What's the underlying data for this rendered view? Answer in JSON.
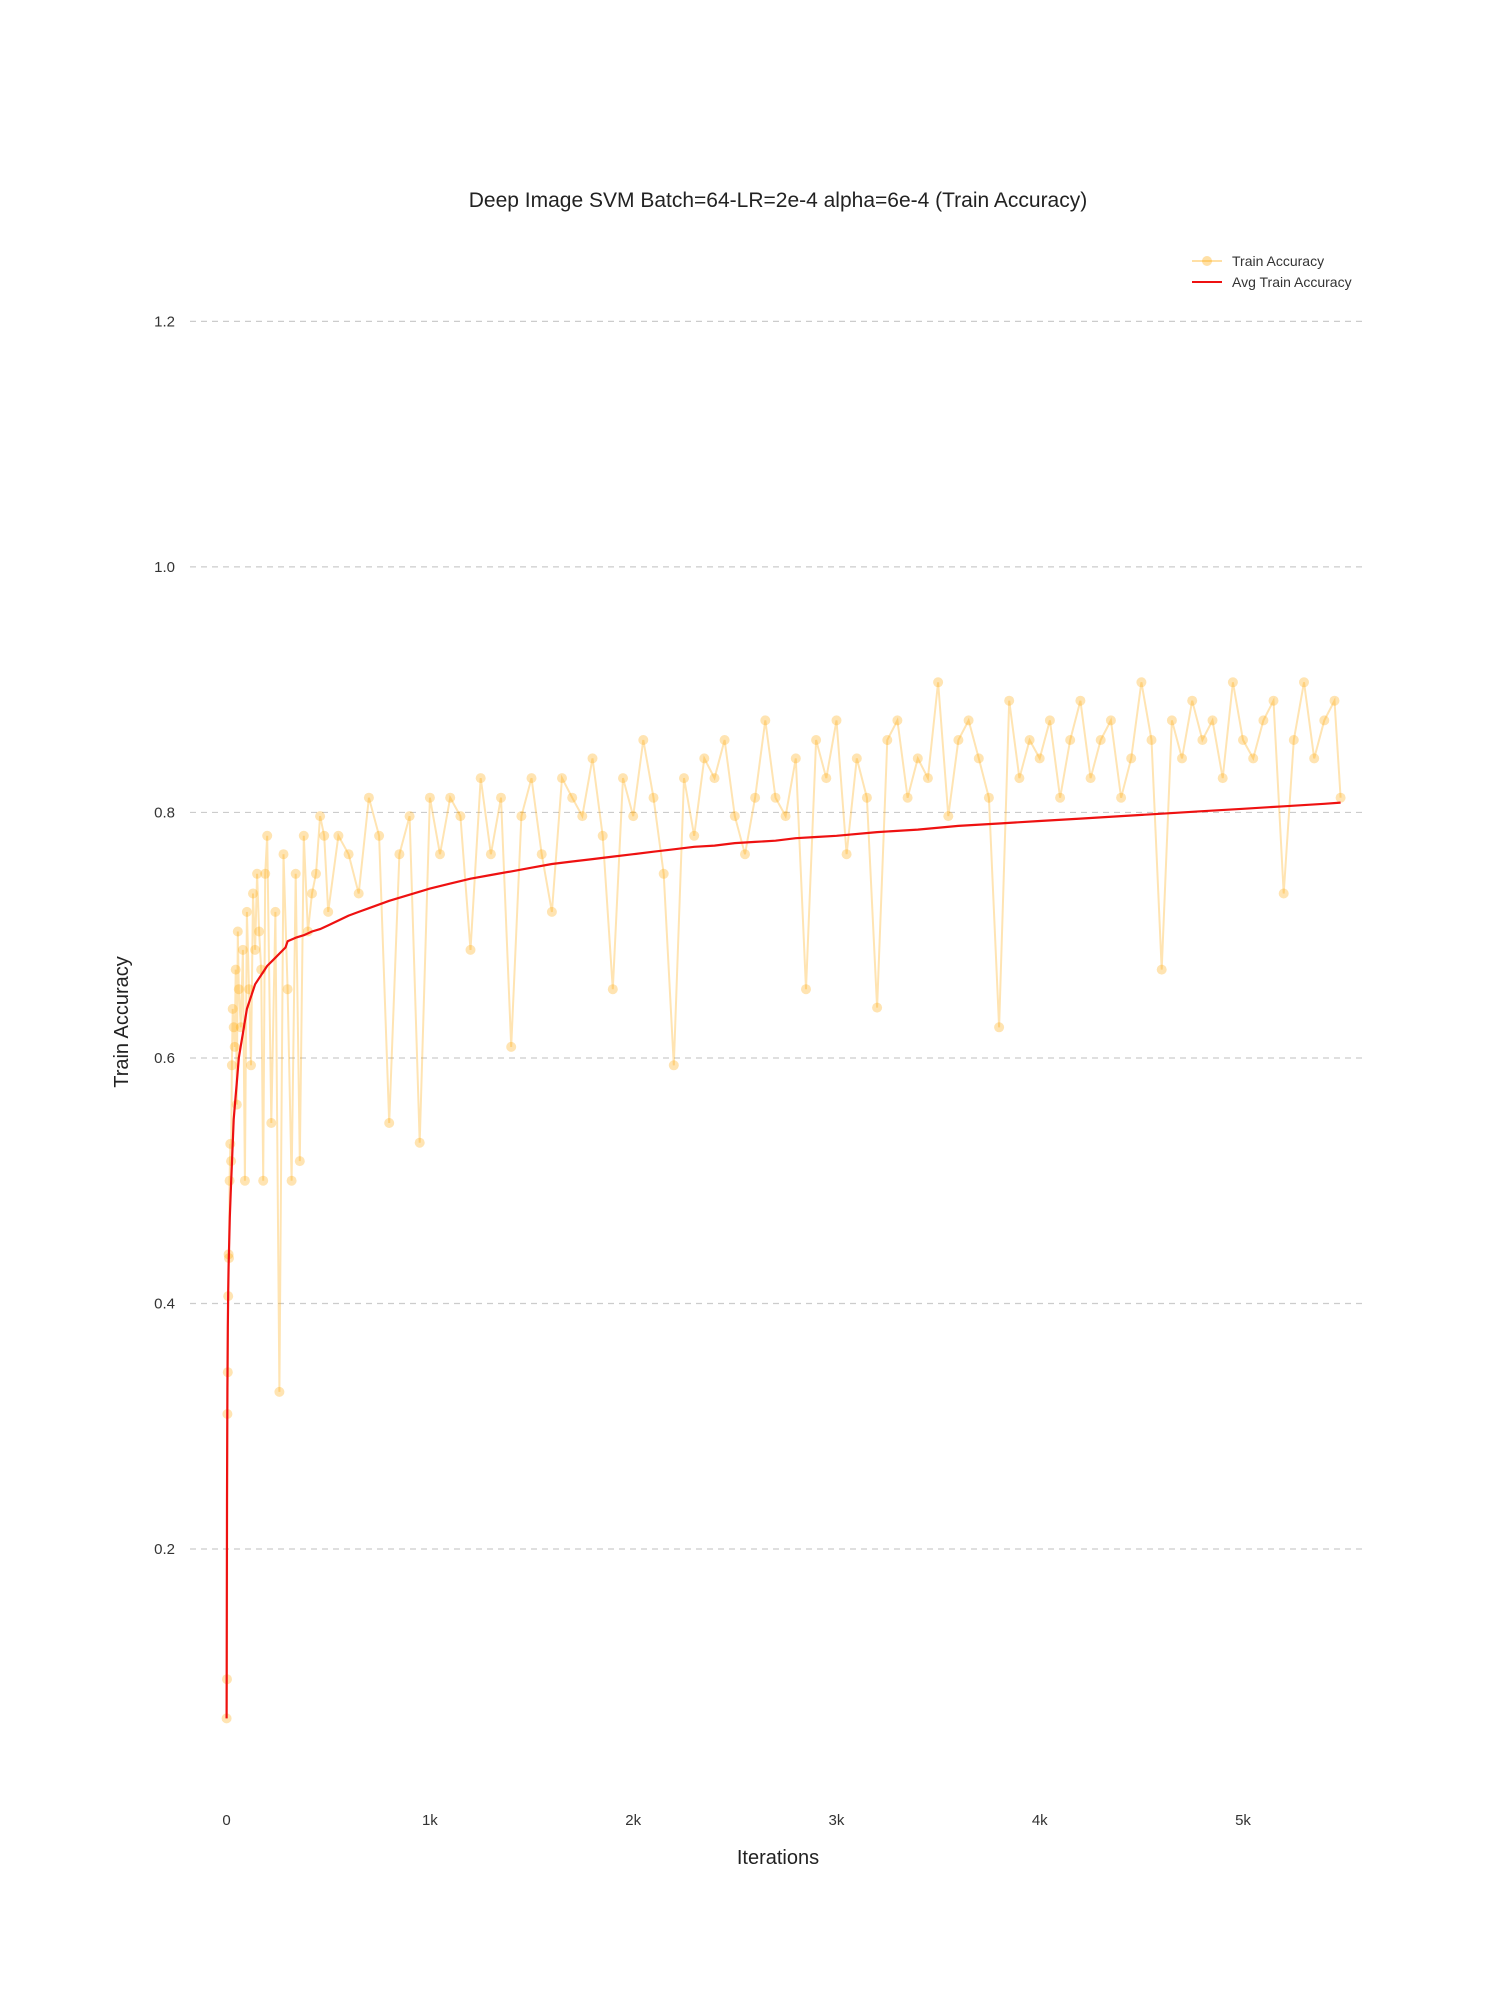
{
  "chart_data": {
    "type": "line",
    "title": "Deep Image SVM Batch=64-LR=2e-4 alpha=6e-4 (Train Accuracy)",
    "xlabel": "Iterations",
    "ylabel": "Train Accuracy",
    "xlim": [
      -180,
      5600
    ],
    "ylim": [
      0.02,
      1.25
    ],
    "x_ticks": [
      0,
      1000,
      2000,
      3000,
      4000,
      5000
    ],
    "x_tick_labels": [
      "0",
      "1k",
      "2k",
      "3k",
      "4k",
      "5k"
    ],
    "y_ticks": [
      0.2,
      0.4,
      0.6,
      0.8,
      1.0,
      1.2
    ],
    "y_tick_labels": [
      "0.2",
      "0.4",
      "0.6",
      "0.8",
      "1.0",
      "1.2"
    ],
    "grid": "horizontal-dashed",
    "legend_position": "top-right",
    "colors": {
      "raw": "#ffa500",
      "avg": "#ee1111",
      "grid": "#cccccc"
    },
    "series": [
      {
        "name": "Train Accuracy",
        "style": "line+markers",
        "x": [
          0,
          2,
          4,
          6,
          8,
          10,
          12,
          15,
          18,
          22,
          26,
          30,
          35,
          40,
          45,
          50,
          55,
          60,
          70,
          80,
          90,
          100,
          110,
          120,
          130,
          140,
          150,
          160,
          170,
          180,
          190,
          200,
          220,
          240,
          260,
          280,
          300,
          320,
          340,
          360,
          380,
          400,
          420,
          440,
          460,
          480,
          500,
          550,
          600,
          650,
          700,
          750,
          800,
          850,
          900,
          950,
          1000,
          1050,
          1100,
          1150,
          1200,
          1250,
          1300,
          1350,
          1400,
          1450,
          1500,
          1550,
          1600,
          1650,
          1700,
          1750,
          1800,
          1850,
          1900,
          1950,
          2000,
          2050,
          2100,
          2150,
          2200,
          2250,
          2300,
          2350,
          2400,
          2450,
          2500,
          2550,
          2600,
          2650,
          2700,
          2750,
          2800,
          2850,
          2900,
          2950,
          3000,
          3050,
          3100,
          3150,
          3200,
          3250,
          3300,
          3350,
          3400,
          3450,
          3500,
          3550,
          3600,
          3650,
          3700,
          3750,
          3800,
          3850,
          3900,
          3950,
          4000,
          4050,
          4100,
          4150,
          4200,
          4250,
          4300,
          4350,
          4400,
          4450,
          4500,
          4550,
          4600,
          4650,
          4700,
          4750,
          4800,
          4850,
          4900,
          4950,
          5000,
          5050,
          5100,
          5150,
          5200,
          5250,
          5300,
          5350,
          5400,
          5450,
          5480
        ],
        "y": [
          0.062,
          0.094,
          0.31,
          0.344,
          0.406,
          0.44,
          0.437,
          0.5,
          0.53,
          0.516,
          0.594,
          0.64,
          0.625,
          0.609,
          0.672,
          0.562,
          0.703,
          0.656,
          0.625,
          0.688,
          0.5,
          0.719,
          0.656,
          0.594,
          0.734,
          0.688,
          0.75,
          0.703,
          0.672,
          0.5,
          0.75,
          0.781,
          0.547,
          0.719,
          0.328,
          0.766,
          0.656,
          0.5,
          0.75,
          0.516,
          0.781,
          0.703,
          0.734,
          0.75,
          0.797,
          0.781,
          0.719,
          0.781,
          0.766,
          0.734,
          0.812,
          0.781,
          0.547,
          0.766,
          0.797,
          0.531,
          0.812,
          0.766,
          0.812,
          0.797,
          0.688,
          0.828,
          0.766,
          0.812,
          0.609,
          0.797,
          0.828,
          0.766,
          0.719,
          0.828,
          0.812,
          0.797,
          0.844,
          0.781,
          0.656,
          0.828,
          0.797,
          0.859,
          0.812,
          0.75,
          0.594,
          0.828,
          0.781,
          0.844,
          0.828,
          0.859,
          0.797,
          0.766,
          0.812,
          0.875,
          0.812,
          0.797,
          0.844,
          0.656,
          0.859,
          0.828,
          0.875,
          0.766,
          0.844,
          0.812,
          0.641,
          0.859,
          0.875,
          0.812,
          0.844,
          0.828,
          0.906,
          0.797,
          0.859,
          0.875,
          0.844,
          0.812,
          0.625,
          0.891,
          0.828,
          0.859,
          0.844,
          0.875,
          0.812,
          0.859,
          0.891,
          0.828,
          0.859,
          0.875,
          0.812,
          0.844,
          0.906,
          0.859,
          0.672,
          0.875,
          0.844,
          0.891,
          0.859,
          0.875,
          0.828,
          0.906,
          0.859,
          0.844,
          0.875,
          0.891,
          0.734,
          0.859,
          0.906,
          0.844,
          0.875,
          0.891,
          0.812
        ]
      },
      {
        "name": "Avg Train Accuracy",
        "style": "line",
        "x": [
          0,
          2,
          4,
          6,
          8,
          10,
          13,
          16,
          20,
          25,
          30,
          35,
          40,
          50,
          60,
          70,
          80,
          100,
          120,
          140,
          160,
          180,
          200,
          230,
          260,
          290,
          300,
          340,
          380,
          420,
          460,
          500,
          550,
          600,
          650,
          700,
          800,
          900,
          1000,
          1100,
          1200,
          1300,
          1400,
          1500,
          1600,
          1700,
          1800,
          1900,
          2000,
          2100,
          2200,
          2300,
          2400,
          2500,
          2600,
          2700,
          2800,
          2900,
          3000,
          3200,
          3400,
          3600,
          3800,
          4000,
          4200,
          4400,
          4600,
          4800,
          5000,
          5200,
          5400,
          5480
        ],
        "y": [
          0.062,
          0.24,
          0.33,
          0.38,
          0.41,
          0.43,
          0.45,
          0.47,
          0.49,
          0.51,
          0.53,
          0.55,
          0.56,
          0.58,
          0.6,
          0.61,
          0.62,
          0.64,
          0.65,
          0.66,
          0.665,
          0.67,
          0.675,
          0.68,
          0.685,
          0.69,
          0.695,
          0.698,
          0.7,
          0.703,
          0.705,
          0.708,
          0.712,
          0.716,
          0.719,
          0.722,
          0.728,
          0.733,
          0.738,
          0.742,
          0.746,
          0.749,
          0.752,
          0.755,
          0.758,
          0.76,
          0.762,
          0.764,
          0.766,
          0.768,
          0.77,
          0.772,
          0.773,
          0.775,
          0.776,
          0.777,
          0.779,
          0.78,
          0.781,
          0.784,
          0.786,
          0.789,
          0.791,
          0.793,
          0.795,
          0.797,
          0.799,
          0.801,
          0.803,
          0.805,
          0.807,
          0.808
        ]
      }
    ]
  }
}
